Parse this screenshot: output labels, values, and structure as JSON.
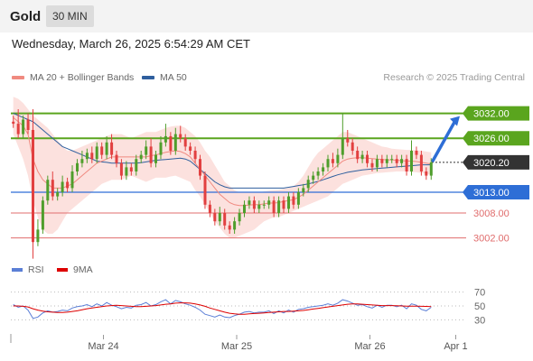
{
  "header": {
    "title": "Gold",
    "timeframe": "30 MIN"
  },
  "datetime": "Wednesday, March 26, 2025 6:54:29 AM CET",
  "legend": [
    {
      "label": "MA 20 + Bollinger Bands",
      "color": "#f08a80"
    },
    {
      "label": "MA 50",
      "color": "#2f5f9e"
    }
  ],
  "credit": "Research © 2025 Trading Central",
  "rsi_legend": [
    {
      "label": "RSI",
      "color": "#5b7fd6"
    },
    {
      "label": "9MA",
      "color": "#dd0000"
    }
  ],
  "colors": {
    "resistance": "#5aa51e",
    "support": "#e06d6d",
    "pivot": "#2e6ed6",
    "up": "#4f9e2c",
    "down": "#e24040",
    "price_tag": "#333333"
  },
  "chart_data": [
    {
      "type": "candlestick",
      "ylim": [
        2998,
        3038
      ],
      "x_ticks": [
        {
          "label": "Mar 24",
          "x": 0.205
        },
        {
          "label": "Mar 25",
          "x": 0.5
        },
        {
          "label": "Mar 26",
          "x": 0.795
        },
        {
          "label": "Apr 1",
          "x": 0.985
        }
      ],
      "levels": [
        {
          "label": "3032.00",
          "value": 3032.0,
          "kind": "resistance"
        },
        {
          "label": "3026.00",
          "value": 3026.0,
          "kind": "resistance"
        },
        {
          "label": "3020.20",
          "value": 3020.2,
          "kind": "last"
        },
        {
          "label": "3013.00",
          "value": 3013.0,
          "kind": "pivot"
        },
        {
          "label": "3008.00",
          "value": 3008.0,
          "kind": "support"
        },
        {
          "label": "3002.00",
          "value": 3002.0,
          "kind": "support"
        }
      ],
      "closes": [
        3029.5,
        3027,
        3030.5,
        3028,
        3001,
        3004,
        3011,
        3016,
        3012,
        3013,
        3015.5,
        3014,
        3018,
        3020,
        3021,
        3022.5,
        3021,
        3024,
        3022,
        3025,
        3022,
        3020,
        3017,
        3019,
        3018,
        3021,
        3022,
        3024,
        3020,
        3022,
        3025,
        3026.5,
        3023,
        3027,
        3026,
        3024,
        3023,
        3021,
        3017,
        3010,
        3008,
        3006,
        3008,
        3005,
        3004,
        3006,
        3008,
        3010,
        3011,
        3009,
        3010,
        3010,
        3011,
        3008,
        3011,
        3009,
        3012,
        3010,
        3013,
        3014,
        3016,
        3017,
        3018,
        3019,
        3021,
        3020,
        3022,
        3026,
        3025,
        3023,
        3021,
        3022,
        3020,
        3019,
        3021,
        3020,
        3021,
        3021,
        3020,
        3021,
        3018,
        3023,
        3022,
        3018,
        3017,
        3020.2
      ],
      "ma20": [
        3031,
        3030,
        3029,
        3027,
        3021,
        3018,
        3016,
        3015,
        3014,
        3014,
        3014,
        3014.5,
        3015,
        3016,
        3017,
        3018,
        3019,
        3020,
        3020.5,
        3021,
        3021.5,
        3021.5,
        3021.5,
        3021.5,
        3021.5,
        3021.5,
        3021.5,
        3021.5,
        3021.8,
        3022,
        3022.3,
        3022.6,
        3022.8,
        3023,
        3022.8,
        3022.3,
        3021.5,
        3020,
        3018.5,
        3017,
        3015.5,
        3014,
        3012.5,
        3011.5,
        3010.5,
        3010,
        3009.8,
        3009.8,
        3009.9,
        3010,
        3010,
        3010.2,
        3010.4,
        3010.4,
        3010.5,
        3010.8,
        3011,
        3011.2,
        3011.8,
        3012.5,
        3013.5,
        3014.5,
        3015.5,
        3016.5,
        3017.5,
        3018.5,
        3019.5,
        3020.5,
        3021,
        3021.2,
        3021.3,
        3021.3,
        3021.2,
        3021.1,
        3021,
        3020.9,
        3020.8,
        3020.8,
        3020.7,
        3020.6,
        3020.5,
        3020.5,
        3020.4,
        3020.2,
        3020,
        3019.8
      ],
      "bb_upper": [
        3036,
        3035.5,
        3034.5,
        3033,
        3031.5,
        3030.5,
        3029.5,
        3028.5,
        3027,
        3025.5,
        3024,
        3023,
        3023,
        3023.5,
        3024,
        3024.5,
        3025,
        3025.5,
        3026,
        3026.5,
        3027,
        3027,
        3027,
        3026.5,
        3026,
        3026.5,
        3027,
        3027.5,
        3027.5,
        3027.5,
        3028,
        3028.5,
        3028.8,
        3029,
        3029,
        3028.5,
        3027.5,
        3026.5,
        3025,
        3023,
        3021.5,
        3019.5,
        3017.5,
        3015.5,
        3014.5,
        3013.5,
        3013,
        3013,
        3013,
        3013,
        3013,
        3013.2,
        3013.4,
        3013.5,
        3013.6,
        3013.8,
        3014,
        3014.5,
        3015.5,
        3017,
        3019,
        3021,
        3022.5,
        3023.5,
        3024.5,
        3025.5,
        3026.5,
        3027.5,
        3027.5,
        3027,
        3026.5,
        3026,
        3025.5,
        3025,
        3024.5,
        3024,
        3023.8,
        3023.5,
        3023.4,
        3023.3,
        3023.2,
        3023.2,
        3023.1,
        3023,
        3022.8,
        3022.6
      ],
      "bb_lower": [
        3027,
        3024,
        3021,
        3017,
        3011,
        3007,
        3004,
        3003,
        3003,
        3004,
        3006,
        3008,
        3009,
        3010,
        3011,
        3012,
        3013,
        3014,
        3015,
        3015.5,
        3016,
        3016,
        3016,
        3016.5,
        3017,
        3016.5,
        3016,
        3015.5,
        3016,
        3016.5,
        3016.5,
        3016.5,
        3016.8,
        3017,
        3016.5,
        3016,
        3015.5,
        3013.5,
        3012,
        3010,
        3008,
        3006,
        3004.5,
        3003,
        3002,
        3002,
        3002.5,
        3003,
        3003.5,
        3004,
        3005,
        3006,
        3006.5,
        3007,
        3007,
        3007.5,
        3008,
        3008.5,
        3009,
        3009.5,
        3010,
        3010.5,
        3011,
        3011.5,
        3012,
        3013,
        3014,
        3015,
        3015.5,
        3016,
        3016.5,
        3017,
        3017.2,
        3017.4,
        3017.6,
        3017.7,
        3017.8,
        3017.9,
        3018,
        3018,
        3018,
        3017.9,
        3017.8,
        3017.6,
        3017.4,
        3017.2
      ],
      "ma50": [
        3032,
        3031.5,
        3031,
        3030.5,
        3030,
        3029,
        3028,
        3027,
        3026,
        3025,
        3024,
        3023.5,
        3023,
        3022.5,
        3022,
        3021.5,
        3021,
        3020.5,
        3020.3,
        3020.2,
        3020,
        3020,
        3020,
        3020,
        3020,
        3020,
        3020.1,
        3020.3,
        3020.5,
        3020.7,
        3020.8,
        3020.9,
        3021,
        3021.1,
        3021.2,
        3021,
        3020.5,
        3019.5,
        3018.5,
        3017.5,
        3016.5,
        3015.5,
        3014.8,
        3014.3,
        3014,
        3014,
        3014,
        3014,
        3014,
        3014,
        3014,
        3014,
        3014,
        3014,
        3014,
        3014,
        3014.2,
        3014.4,
        3014.6,
        3014.8,
        3015,
        3015.3,
        3015.6,
        3016,
        3016.4,
        3016.8,
        3017.2,
        3017.5,
        3017.8,
        3018,
        3018.2,
        3018.4,
        3018.5,
        3018.6,
        3018.7,
        3018.8,
        3018.9,
        3019,
        3019.1,
        3019.2,
        3019.3,
        3019.4,
        3019.5,
        3019.6,
        3019.6,
        3019.6
      ]
    },
    {
      "type": "line",
      "ylim": [
        20,
        80
      ],
      "y_ticks": [
        {
          "label": "70",
          "value": 70
        },
        {
          "label": "50",
          "value": 50
        },
        {
          "label": "30",
          "value": 30
        }
      ],
      "series": [
        {
          "name": "RSI",
          "values": [
            52,
            48,
            50,
            44,
            32,
            34,
            40,
            43,
            41,
            42,
            44,
            43,
            47,
            49,
            50,
            52,
            49,
            53,
            50,
            55,
            51,
            49,
            46,
            48,
            47,
            51,
            52,
            55,
            50,
            52,
            56,
            59,
            53,
            58,
            56,
            53,
            51,
            48,
            44,
            38,
            36,
            34,
            37,
            34,
            33,
            36,
            38,
            41,
            42,
            40,
            41,
            41,
            43,
            39,
            43,
            40,
            44,
            41,
            45,
            46,
            48,
            49,
            50,
            51,
            53,
            51,
            54,
            59,
            57,
            54,
            51,
            52,
            49,
            47,
            51,
            48,
            51,
            51,
            49,
            51,
            46,
            53,
            51,
            45,
            43,
            48
          ]
        },
        {
          "name": "9MA",
          "values": [
            50,
            50,
            49.5,
            48.5,
            46,
            44,
            42.5,
            41.5,
            41,
            40.5,
            40.5,
            41,
            42,
            43,
            44.5,
            46,
            47,
            48,
            49,
            50,
            50.5,
            51,
            50.5,
            50,
            49.5,
            49,
            49,
            49.5,
            50,
            50.5,
            51.5,
            52.5,
            53,
            54,
            54.5,
            54.5,
            54,
            53,
            51.5,
            49.5,
            47,
            45,
            43,
            41,
            39.5,
            38.5,
            38,
            38,
            38.5,
            39,
            39.5,
            40,
            40.5,
            41,
            41.5,
            42,
            42,
            42.5,
            43,
            43.5,
            44.5,
            45.5,
            46.5,
            47.5,
            48.5,
            49.5,
            50.5,
            51.5,
            52.5,
            53,
            53,
            52.5,
            52,
            51.5,
            51,
            50.5,
            50.5,
            50.5,
            50.3,
            50,
            49.8,
            49.8,
            49.8,
            49.5,
            49.3,
            49
          ]
        }
      ]
    }
  ]
}
